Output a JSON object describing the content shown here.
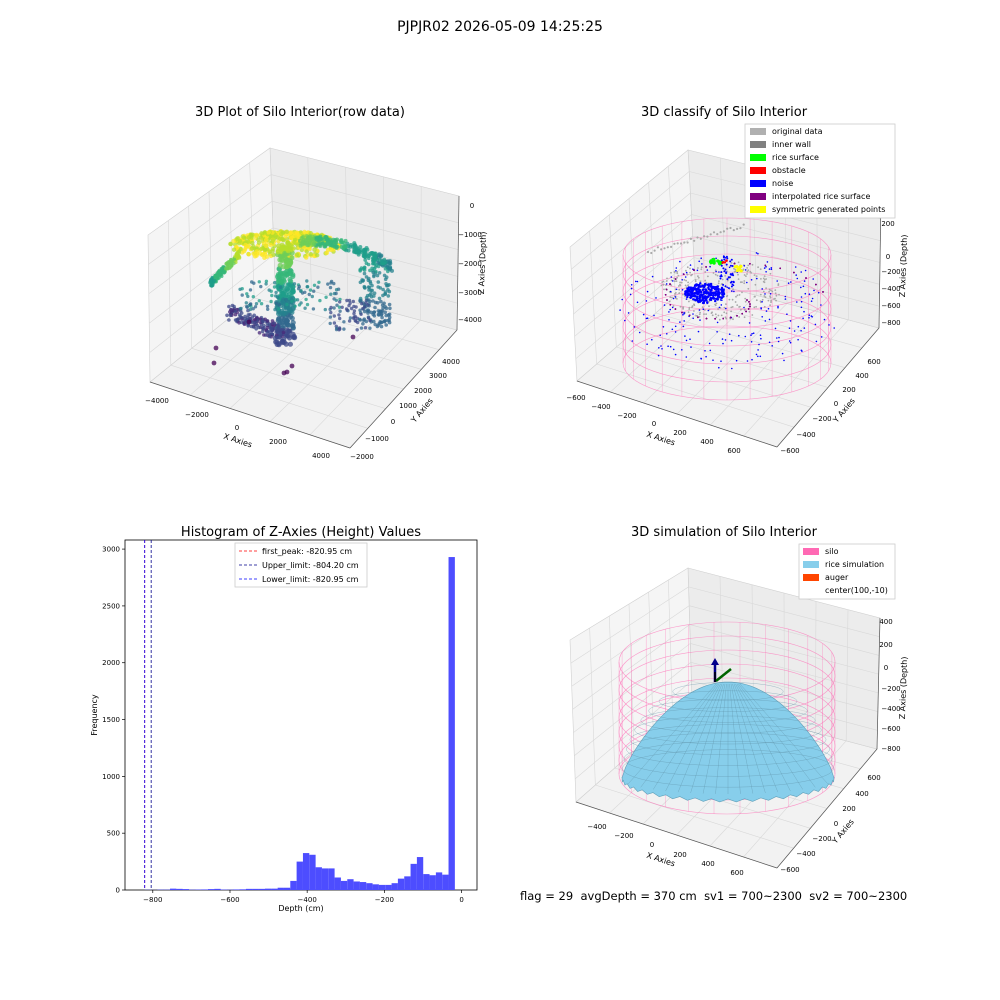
{
  "suptitle": "PJPJR02 2026-05-09 14:25:25",
  "footer": {
    "flag": "flag = 29",
    "avg_depth": "avgDepth = 370 cm",
    "sv1": "sv1 = 700~2300",
    "sv2": "sv2 = 700~2300"
  },
  "colors": {
    "silo": "#ff69b4",
    "rice_simulation": "#87ceeb",
    "auger": "#ff4500",
    "original_data": "#b0b0b0",
    "inner_wall": "#808080",
    "rice_surface": "#00ff00",
    "obstacle": "#ff0000",
    "noise": "#0000ff",
    "interpolated_rice_surface": "#800080",
    "symmetric_generated_points": "#ffff00",
    "histogram_bar": "#4d4dff"
  },
  "chart_data": [
    {
      "type": "scatter",
      "subtype": "3d",
      "title": "3D Plot of Silo Interior(row data)",
      "xlabel": "X Axies",
      "ylabel": "Y Axies",
      "zlabel": "Z Axies (Depth)",
      "xticks": [
        "−4000",
        "−2000",
        "0",
        "2000",
        "4000"
      ],
      "yticks": [
        "−2000",
        "−1000",
        "0",
        "1000",
        "2000",
        "3000",
        "4000"
      ],
      "zticks": [
        "−4000",
        "−3000",
        "−2000",
        "−1000",
        "0"
      ],
      "colormap": "viridis",
      "grid": true
    },
    {
      "type": "scatter",
      "subtype": "3d",
      "title": "3D classify of Silo Interior",
      "xlabel": "X Axies",
      "ylabel": "Y Axies",
      "zlabel": "Z Axies (Depth)",
      "xticks": [
        "−600",
        "−400",
        "−200",
        "0",
        "200",
        "400",
        "600"
      ],
      "yticks": [
        "−600",
        "−400",
        "−200",
        "0",
        "200",
        "400",
        "600"
      ],
      "zticks": [
        "−800",
        "−600",
        "−400",
        "−200",
        "0",
        "200"
      ],
      "legend": [
        "original data",
        "inner wall",
        "rice surface",
        "obstacle",
        "noise",
        "interpolated rice surface",
        "symmetric generated points"
      ],
      "legend_position": "upper-right",
      "grid": true
    },
    {
      "type": "bar",
      "subtype": "histogram",
      "title": "Histogram of Z-Axies (Height) Values",
      "xlabel": "Depth (cm)",
      "ylabel": "Frequency",
      "xlim": [
        -872,
        40
      ],
      "ylim": [
        0,
        3080
      ],
      "xticks": [
        -800,
        -600,
        -400,
        -200,
        0
      ],
      "xtick_labels": [
        "−800",
        "−600",
        "−400",
        "−200",
        "0"
      ],
      "yticks": [
        0,
        500,
        1000,
        1500,
        2000,
        2500,
        3000
      ],
      "bin_width": 16.4,
      "bins": [
        {
          "x": -820.95,
          "y": 2
        },
        {
          "x": -804.55,
          "y": 1
        },
        {
          "x": -788.15,
          "y": 3
        },
        {
          "x": -771.75,
          "y": 3
        },
        {
          "x": -755.35,
          "y": 12
        },
        {
          "x": -738.95,
          "y": 10
        },
        {
          "x": -722.55,
          "y": 8
        },
        {
          "x": -706.15,
          "y": 3
        },
        {
          "x": -689.75,
          "y": 4
        },
        {
          "x": -673.35,
          "y": 5
        },
        {
          "x": -656.95,
          "y": 8
        },
        {
          "x": -640.55,
          "y": 10
        },
        {
          "x": -624.15,
          "y": 4
        },
        {
          "x": -607.75,
          "y": 3
        },
        {
          "x": -591.35,
          "y": 5
        },
        {
          "x": -574.95,
          "y": 6
        },
        {
          "x": -558.55,
          "y": 10
        },
        {
          "x": -542.15,
          "y": 10
        },
        {
          "x": -525.75,
          "y": 10
        },
        {
          "x": -509.35,
          "y": 12
        },
        {
          "x": -492.95,
          "y": 12
        },
        {
          "x": -476.55,
          "y": 20
        },
        {
          "x": -460.15,
          "y": 20
        },
        {
          "x": -443.75,
          "y": 80
        },
        {
          "x": -427.35,
          "y": 250
        },
        {
          "x": -410.95,
          "y": 325
        },
        {
          "x": -394.55,
          "y": 310
        },
        {
          "x": -378.15,
          "y": 200
        },
        {
          "x": -361.75,
          "y": 190
        },
        {
          "x": -345.35,
          "y": 190
        },
        {
          "x": -328.95,
          "y": 110
        },
        {
          "x": -312.55,
          "y": 80
        },
        {
          "x": -296.15,
          "y": 95
        },
        {
          "x": -279.75,
          "y": 75
        },
        {
          "x": -263.35,
          "y": 70
        },
        {
          "x": -246.95,
          "y": 60
        },
        {
          "x": -230.55,
          "y": 50
        },
        {
          "x": -214.15,
          "y": 45
        },
        {
          "x": -197.75,
          "y": 45
        },
        {
          "x": -181.35,
          "y": 60
        },
        {
          "x": -164.95,
          "y": 100
        },
        {
          "x": -148.55,
          "y": 120
        },
        {
          "x": -132.15,
          "y": 230
        },
        {
          "x": -115.75,
          "y": 290
        },
        {
          "x": -99.35,
          "y": 140
        },
        {
          "x": -82.95,
          "y": 130
        },
        {
          "x": -66.55,
          "y": 155
        },
        {
          "x": -50.15,
          "y": 135
        },
        {
          "x": -33.75,
          "y": 2930
        },
        {
          "x": -17.35,
          "y": 0
        }
      ],
      "vlines": [
        {
          "x": -820.95,
          "label": "first_peak: -820.95 cm",
          "color": "#ff0000",
          "style": "dashed"
        },
        {
          "x": -804.2,
          "label": "Upper_limit: -804.20 cm",
          "color": "#00008b",
          "style": "dashed"
        },
        {
          "x": -820.95,
          "label": "Lower_limit: -820.95 cm",
          "color": "#0000ff",
          "style": "dashed"
        }
      ],
      "legend_position": "upper-center",
      "grid": false
    },
    {
      "type": "area",
      "subtype": "3d-surface",
      "title": "3D simulation of Silo Interior",
      "xlabel": "X Axies",
      "ylabel": "Y Axies",
      "zlabel": "Z Axies (Depth)",
      "xticks": [
        "−400",
        "−200",
        "0",
        "200",
        "400",
        "600"
      ],
      "yticks": [
        "−600",
        "−400",
        "−200",
        "0",
        "200",
        "400",
        "600"
      ],
      "zticks": [
        "−800",
        "−600",
        "−400",
        "−200",
        "0",
        "200",
        "400"
      ],
      "legend": [
        "silo",
        "rice simulation",
        "auger",
        "center(100,-10)"
      ],
      "legend_position": "upper-right",
      "grid": true
    }
  ]
}
